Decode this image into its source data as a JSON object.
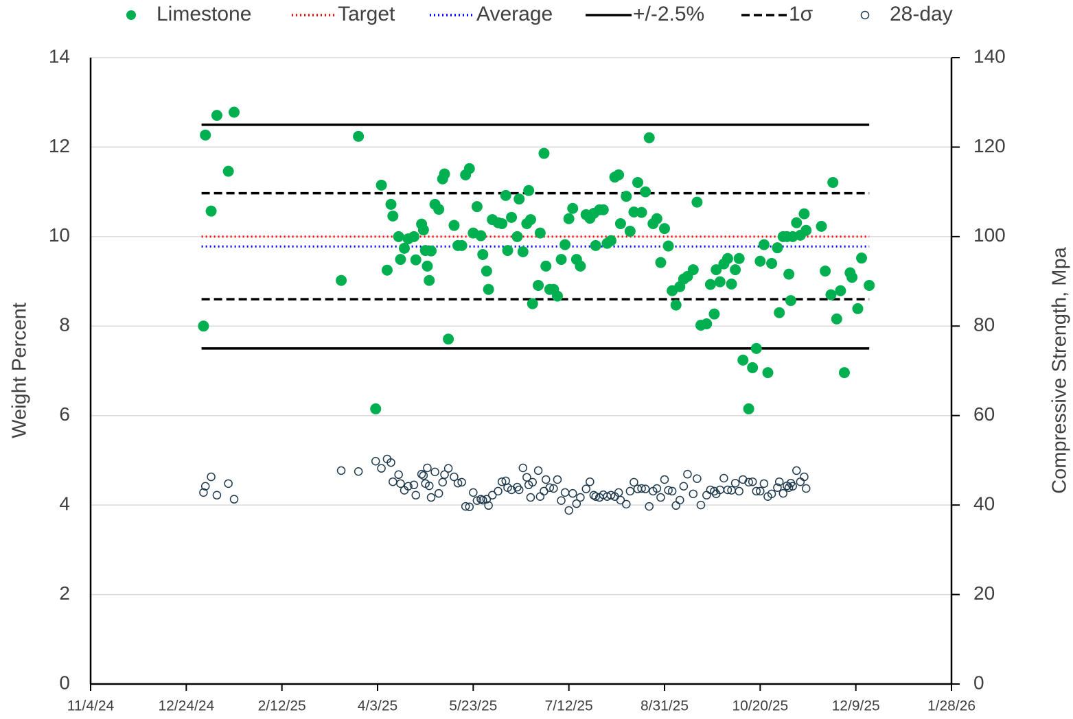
{
  "chart_data": {
    "type": "scatter",
    "y_label": "Weight Percent",
    "y2_label": "Compressive Strength, Mpa",
    "xlim": [
      "2024-11-04",
      "2026-01-28"
    ],
    "xticks": [
      {
        "value": "2024-11-04",
        "label": "11/4/24"
      },
      {
        "value": "2024-12-24",
        "label": "12/24/24"
      },
      {
        "value": "2025-02-12",
        "label": "2/12/25"
      },
      {
        "value": "2025-04-03",
        "label": "4/3/25"
      },
      {
        "value": "2025-05-23",
        "label": "5/23/25"
      },
      {
        "value": "2025-07-12",
        "label": "7/12/25"
      },
      {
        "value": "2025-08-31",
        "label": "8/31/25"
      },
      {
        "value": "2025-10-20",
        "label": "10/20/25"
      },
      {
        "value": "2025-12-09",
        "label": "12/9/25"
      },
      {
        "value": "2026-01-28",
        "label": "1/28/26"
      }
    ],
    "ylim": [
      0,
      14
    ],
    "yticks": [
      0,
      2,
      4,
      6,
      8,
      10,
      12,
      14
    ],
    "y2lim": [
      0,
      140
    ],
    "y2ticks": [
      0,
      20,
      40,
      60,
      80,
      100,
      120,
      140
    ],
    "grid": true,
    "legend": "top",
    "series": [
      {
        "name": "Limestone",
        "kind": "marker",
        "fill": true,
        "color": "#00b050",
        "x": [
          "2025-01-02",
          "2025-01-03",
          "2025-01-06",
          "2025-01-09",
          "2025-01-15",
          "2025-01-18",
          "2025-03-15",
          "2025-03-24",
          "2025-04-02",
          "2025-04-05",
          "2025-04-08",
          "2025-04-10",
          "2025-04-11",
          "2025-04-14",
          "2025-04-15",
          "2025-04-17",
          "2025-04-19",
          "2025-04-22",
          "2025-04-23",
          "2025-04-26",
          "2025-04-27",
          "2025-04-28",
          "2025-04-29",
          "2025-04-30",
          "2025-05-01",
          "2025-05-03",
          "2025-05-05",
          "2025-05-07",
          "2025-05-08",
          "2025-05-10",
          "2025-05-13",
          "2025-05-15",
          "2025-05-17",
          "2025-05-19",
          "2025-05-21",
          "2025-05-23",
          "2025-05-25",
          "2025-05-27",
          "2025-05-28",
          "2025-05-30",
          "2025-05-31",
          "2025-06-02",
          "2025-06-05",
          "2025-06-07",
          "2025-06-09",
          "2025-06-10",
          "2025-06-12",
          "2025-06-15",
          "2025-06-16",
          "2025-06-18",
          "2025-06-20",
          "2025-06-21",
          "2025-06-22",
          "2025-06-23",
          "2025-06-26",
          "2025-06-27",
          "2025-06-29",
          "2025-06-30",
          "2025-07-02",
          "2025-07-04",
          "2025-07-06",
          "2025-07-08",
          "2025-07-10",
          "2025-07-12",
          "2025-07-14",
          "2025-07-16",
          "2025-07-18",
          "2025-07-21",
          "2025-07-23",
          "2025-07-25",
          "2025-07-26",
          "2025-07-28",
          "2025-07-30",
          "2025-08-01",
          "2025-08-03",
          "2025-08-05",
          "2025-08-07",
          "2025-08-08",
          "2025-08-11",
          "2025-08-13",
          "2025-08-15",
          "2025-08-17",
          "2025-08-19",
          "2025-08-21",
          "2025-08-23",
          "2025-08-25",
          "2025-08-27",
          "2025-08-29",
          "2025-08-31",
          "2025-09-02",
          "2025-09-04",
          "2025-09-06",
          "2025-09-08",
          "2025-09-10",
          "2025-09-12",
          "2025-09-15",
          "2025-09-17",
          "2025-09-19",
          "2025-09-22",
          "2025-09-24",
          "2025-09-26",
          "2025-09-27",
          "2025-09-29",
          "2025-10-01",
          "2025-10-03",
          "2025-10-05",
          "2025-10-07",
          "2025-10-09",
          "2025-10-11",
          "2025-10-14",
          "2025-10-16",
          "2025-10-18",
          "2025-10-20",
          "2025-10-22",
          "2025-10-24",
          "2025-10-26",
          "2025-10-29",
          "2025-10-30",
          "2025-11-01",
          "2025-11-03",
          "2025-11-04",
          "2025-11-05",
          "2025-11-06",
          "2025-11-08",
          "2025-11-10",
          "2025-11-12",
          "2025-11-13",
          "2025-11-21",
          "2025-11-23",
          "2025-11-26",
          "2025-11-27",
          "2025-11-29",
          "2025-12-01",
          "2025-12-03",
          "2025-12-06",
          "2025-12-07",
          "2025-12-10",
          "2025-12-12",
          "2025-12-16"
        ],
        "values": [
          8.0,
          12.27,
          10.57,
          12.71,
          11.46,
          12.78,
          9.02,
          12.24,
          6.15,
          11.15,
          9.25,
          10.72,
          10.46,
          10.0,
          9.49,
          9.74,
          9.95,
          10.0,
          9.48,
          10.28,
          10.15,
          9.69,
          9.34,
          9.02,
          9.68,
          10.72,
          10.61,
          11.29,
          11.4,
          7.71,
          10.25,
          9.8,
          9.8,
          11.38,
          11.52,
          10.08,
          10.67,
          10.02,
          9.6,
          9.23,
          8.82,
          10.38,
          10.31,
          10.29,
          10.92,
          9.69,
          10.43,
          10.0,
          10.84,
          9.66,
          10.29,
          11.03,
          10.38,
          8.5,
          8.91,
          10.08,
          11.86,
          9.34,
          8.82,
          8.82,
          8.67,
          9.49,
          9.82,
          10.4,
          10.63,
          9.49,
          9.34,
          10.49,
          10.41,
          10.52,
          9.8,
          10.6,
          10.6,
          9.85,
          9.91,
          11.33,
          11.38,
          10.29,
          10.9,
          10.12,
          10.55,
          11.21,
          10.54,
          11.0,
          12.21,
          10.29,
          10.4,
          9.42,
          10.18,
          9.79,
          8.79,
          8.47,
          8.88,
          9.05,
          9.11,
          9.26,
          10.77,
          8.02,
          8.05,
          8.93,
          8.27,
          9.26,
          8.99,
          9.39,
          9.51,
          8.94,
          9.26,
          9.51,
          7.24,
          6.15,
          7.07,
          7.5,
          9.45,
          9.82,
          6.96,
          9.4,
          9.75,
          8.3,
          10.0,
          10.0,
          9.16,
          8.57,
          10.0,
          10.31,
          10.03,
          10.51,
          10.14,
          10.23,
          9.23,
          8.7,
          11.21,
          8.16,
          8.79,
          6.96,
          9.19,
          9.09,
          8.39,
          9.52,
          8.91
        ]
      },
      {
        "name": "Target",
        "kind": "line",
        "dash": "dotted",
        "color": "#ff0000",
        "x": [
          "2025-01-01",
          "2025-12-16"
        ],
        "values": [
          10,
          10
        ]
      },
      {
        "name": "Average",
        "kind": "line",
        "dash": "dotted",
        "color": "#0000ff",
        "x": [
          "2025-01-01",
          "2025-12-16"
        ],
        "values": [
          9.78,
          9.78
        ]
      },
      {
        "name": "+/-2.5%",
        "kind": "line",
        "dash": "solid",
        "color": "#000000",
        "x": [
          "2025-01-01",
          "2025-12-16",
          null,
          "2025-01-01",
          "2025-12-16"
        ],
        "values": [
          12.5,
          12.5,
          null,
          7.5,
          7.5
        ]
      },
      {
        "name": "1σ",
        "kind": "line",
        "dash": "dashed",
        "color": "#000000",
        "x": [
          "2025-01-01",
          "2025-12-16",
          null,
          "2025-01-01",
          "2025-12-16"
        ],
        "values": [
          10.97,
          10.97,
          null,
          8.6,
          8.6
        ]
      },
      {
        "name": "28-day",
        "kind": "marker",
        "fill": false,
        "color": "#1f3a4d",
        "axis": "y2",
        "x": [
          "2025-01-02",
          "2025-01-03",
          "2025-01-06",
          "2025-01-09",
          "2025-01-15",
          "2025-01-18",
          "2025-03-15",
          "2025-03-24",
          "2025-04-02",
          "2025-04-05",
          "2025-04-08",
          "2025-04-10",
          "2025-04-11",
          "2025-04-14",
          "2025-04-15",
          "2025-04-17",
          "2025-04-19",
          "2025-04-22",
          "2025-04-23",
          "2025-04-26",
          "2025-04-27",
          "2025-04-28",
          "2025-04-29",
          "2025-04-30",
          "2025-05-01",
          "2025-05-03",
          "2025-05-05",
          "2025-05-07",
          "2025-05-08",
          "2025-05-10",
          "2025-05-13",
          "2025-05-15",
          "2025-05-17",
          "2025-05-19",
          "2025-05-21",
          "2025-05-23",
          "2025-05-25",
          "2025-05-27",
          "2025-05-28",
          "2025-05-30",
          "2025-05-31",
          "2025-06-02",
          "2025-06-05",
          "2025-06-07",
          "2025-06-09",
          "2025-06-10",
          "2025-06-12",
          "2025-06-15",
          "2025-06-16",
          "2025-06-18",
          "2025-06-20",
          "2025-06-21",
          "2025-06-22",
          "2025-06-23",
          "2025-06-26",
          "2025-06-27",
          "2025-06-29",
          "2025-06-30",
          "2025-07-02",
          "2025-07-04",
          "2025-07-06",
          "2025-07-08",
          "2025-07-10",
          "2025-07-12",
          "2025-07-14",
          "2025-07-16",
          "2025-07-18",
          "2025-07-21",
          "2025-07-23",
          "2025-07-25",
          "2025-07-26",
          "2025-07-28",
          "2025-07-30",
          "2025-08-01",
          "2025-08-03",
          "2025-08-05",
          "2025-08-07",
          "2025-08-08",
          "2025-08-11",
          "2025-08-13",
          "2025-08-15",
          "2025-08-17",
          "2025-08-19",
          "2025-08-21",
          "2025-08-23",
          "2025-08-25",
          "2025-08-27",
          "2025-08-29",
          "2025-08-31",
          "2025-09-02",
          "2025-09-04",
          "2025-09-06",
          "2025-09-08",
          "2025-09-10",
          "2025-09-12",
          "2025-09-15",
          "2025-09-17",
          "2025-09-19",
          "2025-09-22",
          "2025-09-24",
          "2025-09-26",
          "2025-09-27",
          "2025-09-29",
          "2025-10-01",
          "2025-10-03",
          "2025-10-05",
          "2025-10-07",
          "2025-10-09",
          "2025-10-11",
          "2025-10-14",
          "2025-10-16",
          "2025-10-18",
          "2025-10-20",
          "2025-10-22",
          "2025-10-24",
          "2025-10-26",
          "2025-10-29",
          "2025-10-30",
          "2025-11-01",
          "2025-11-03",
          "2025-11-04",
          "2025-11-05",
          "2025-11-06",
          "2025-11-08",
          "2025-11-10",
          "2025-11-12",
          "2025-11-13"
        ],
        "values": [
          42.8,
          44.2,
          46.3,
          42.2,
          44.8,
          41.3,
          47.7,
          47.5,
          49.8,
          48.2,
          50.3,
          49.5,
          45.2,
          46.8,
          44.8,
          43.3,
          44.2,
          44.5,
          42.2,
          46.9,
          46.6,
          44.8,
          48.3,
          44.3,
          41.7,
          47.4,
          42.6,
          45.1,
          46.8,
          48.2,
          46.3,
          44.9,
          45.1,
          39.7,
          39.6,
          42.8,
          41.0,
          41.3,
          41.1,
          41.3,
          39.9,
          42.2,
          43.1,
          45.2,
          45.4,
          43.9,
          43.4,
          44.0,
          43.4,
          48.3,
          46.2,
          44.5,
          41.7,
          45.1,
          47.7,
          41.9,
          43.1,
          45.7,
          43.9,
          43.7,
          45.7,
          41.0,
          42.8,
          38.8,
          42.6,
          40.3,
          41.7,
          43.6,
          45.2,
          42.2,
          41.9,
          41.7,
          42.3,
          41.9,
          42.2,
          41.9,
          42.8,
          41.1,
          40.2,
          43.1,
          45.1,
          43.6,
          43.7,
          43.6,
          39.7,
          43.1,
          43.7,
          41.7,
          45.7,
          43.3,
          43.1,
          39.9,
          41.1,
          44.2,
          46.9,
          42.5,
          45.9,
          40.0,
          42.2,
          43.4,
          43.1,
          42.5,
          43.4,
          46.0,
          43.4,
          43.3,
          44.9,
          43.1,
          45.7,
          45.1,
          45.2,
          43.1,
          43.1,
          44.8,
          41.9,
          42.5,
          43.9,
          45.2,
          42.6,
          44.3,
          43.9,
          44.9,
          44.2,
          47.7,
          45.2,
          46.3,
          43.7
        ]
      }
    ]
  }
}
